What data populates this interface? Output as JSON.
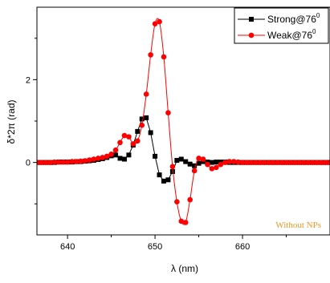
{
  "chart_data": {
    "type": "line",
    "xlabel": "λ (nm)",
    "ylabel": "δ*2π (rad)",
    "xlim": [
      636.5,
      670
    ],
    "ylim": [
      -1.75,
      3.75
    ],
    "xticks": [
      640,
      650,
      660
    ],
    "xtick_labels": [
      "640",
      "650",
      "660"
    ],
    "yticks": [
      0,
      2
    ],
    "ytick_labels": [
      "0",
      "2"
    ],
    "grid": false,
    "legend_position": "top-right",
    "annotation": "Without NPs",
    "series": [
      {
        "name": "Strong@76",
        "name_superscript": "0",
        "color": "#000000",
        "marker": "square",
        "smooth": false,
        "x": [
          636.5,
          637,
          637.5,
          638,
          638.5,
          639,
          639.5,
          640,
          640.5,
          641,
          641.5,
          642,
          642.5,
          643,
          643.5,
          644,
          644.5,
          645,
          645.5,
          646,
          646.5,
          647,
          647.5,
          648,
          648.5,
          649,
          649.5,
          650,
          650.5,
          651,
          651.5,
          652,
          652.5,
          653,
          653.5,
          654,
          654.5,
          655,
          655.5,
          656,
          656.5,
          657,
          657.5,
          658,
          658.5,
          659,
          659.5,
          660,
          660.5,
          661,
          661.5,
          662,
          662.5,
          663,
          663.5,
          664,
          664.5,
          665,
          665.5,
          666,
          666.5,
          667,
          667.5,
          668,
          668.5,
          669,
          669.5,
          670
        ],
        "y": [
          0.0,
          0.0,
          0.0,
          0.0,
          0.0,
          0.01,
          0.01,
          0.01,
          0.01,
          0.02,
          0.02,
          0.03,
          0.04,
          0.05,
          0.07,
          0.09,
          0.12,
          0.16,
          0.18,
          0.1,
          0.08,
          0.18,
          0.42,
          0.75,
          1.05,
          1.08,
          0.72,
          0.15,
          -0.3,
          -0.45,
          -0.42,
          -0.22,
          0.05,
          0.08,
          0.02,
          -0.04,
          -0.08,
          -0.02,
          0.02,
          0.01,
          0.0,
          0.01,
          0.01,
          0.01,
          0.0,
          0.0,
          0.0,
          0.0,
          0.0,
          0.0,
          0.0,
          0.0,
          0.0,
          0.0,
          0.0,
          0.0,
          0.0,
          0.0,
          0.0,
          0.0,
          0.0,
          0.0,
          0.0,
          0.0,
          0.0,
          0.0,
          0.0,
          0.0
        ]
      },
      {
        "name": "Weak@76",
        "name_superscript": "0",
        "color": "#ff0000",
        "marker": "circle",
        "smooth": true,
        "x": [
          636.5,
          637,
          637.5,
          638,
          638.5,
          639,
          639.5,
          640,
          640.5,
          641,
          641.5,
          642,
          642.5,
          643,
          643.5,
          644,
          644.5,
          645,
          645.5,
          646,
          646.5,
          647,
          647.5,
          648,
          648.5,
          649,
          649.5,
          650,
          650.5,
          651,
          651.5,
          652,
          652.5,
          653,
          653.5,
          654,
          654.5,
          655,
          655.5,
          656,
          656.5,
          657,
          657.5,
          658,
          658.5,
          659,
          659.5,
          660,
          660.5,
          661,
          661.5,
          662,
          662.5,
          663,
          663.5,
          664,
          664.5,
          665,
          665.5,
          666,
          666.5,
          667,
          667.5,
          668,
          668.5,
          669,
          669.5,
          670
        ],
        "y": [
          0.0,
          0.0,
          0.0,
          0.0,
          0.01,
          0.01,
          0.01,
          0.01,
          0.02,
          0.02,
          0.03,
          0.04,
          0.06,
          0.08,
          0.1,
          0.12,
          0.15,
          0.2,
          0.3,
          0.48,
          0.65,
          0.62,
          0.45,
          0.52,
          0.9,
          1.65,
          2.6,
          3.35,
          3.4,
          2.55,
          1.2,
          -0.1,
          -0.95,
          -1.42,
          -1.45,
          -0.9,
          -0.2,
          0.1,
          0.08,
          -0.05,
          -0.15,
          -0.12,
          -0.05,
          0.0,
          0.02,
          0.02,
          0.01,
          0.0,
          0.0,
          0.0,
          0.0,
          0.0,
          0.0,
          0.0,
          0.0,
          0.0,
          0.0,
          0.0,
          0.0,
          0.0,
          0.0,
          0.0,
          0.0,
          0.0,
          0.0,
          0.0,
          0.0,
          0.0
        ]
      }
    ]
  }
}
